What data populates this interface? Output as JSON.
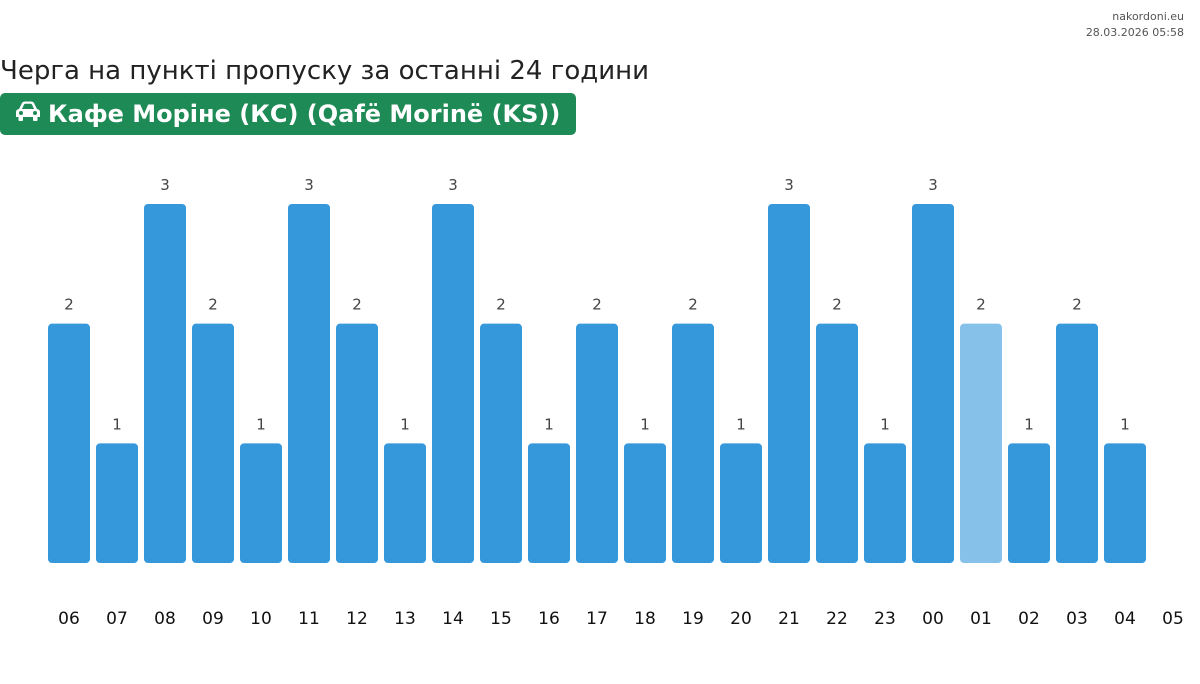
{
  "site": {
    "name": "nakordoni.eu",
    "timestamp": "28.03.2026 05:58"
  },
  "header": {
    "title": "Черга на пункті пропуску за останні 24 години",
    "checkpoint": "Кафе Моріне (КС) (Qafë Morinë (KS))",
    "checkpoint_icon": "car-icon"
  },
  "colors": {
    "bar": "#3598db",
    "bar_highlight": "#85c1e9",
    "badge": "#1e8a55"
  },
  "chart_data": {
    "type": "bar",
    "title": "Черга на пункті пропуску за останні 24 години",
    "xlabel": "",
    "ylabel": "",
    "ylim": [
      0,
      3
    ],
    "categories": [
      "06",
      "07",
      "08",
      "09",
      "10",
      "11",
      "12",
      "13",
      "14",
      "15",
      "16",
      "17",
      "18",
      "19",
      "20",
      "21",
      "22",
      "23",
      "00",
      "01",
      "02",
      "03",
      "04",
      "05"
    ],
    "values": [
      2,
      1,
      3,
      2,
      1,
      3,
      2,
      1,
      3,
      2,
      1,
      2,
      1,
      2,
      1,
      3,
      2,
      1,
      3,
      2,
      1,
      2,
      1,
      null
    ],
    "highlight_index": 19,
    "data_labels": true,
    "grid": false,
    "legend": "none"
  }
}
